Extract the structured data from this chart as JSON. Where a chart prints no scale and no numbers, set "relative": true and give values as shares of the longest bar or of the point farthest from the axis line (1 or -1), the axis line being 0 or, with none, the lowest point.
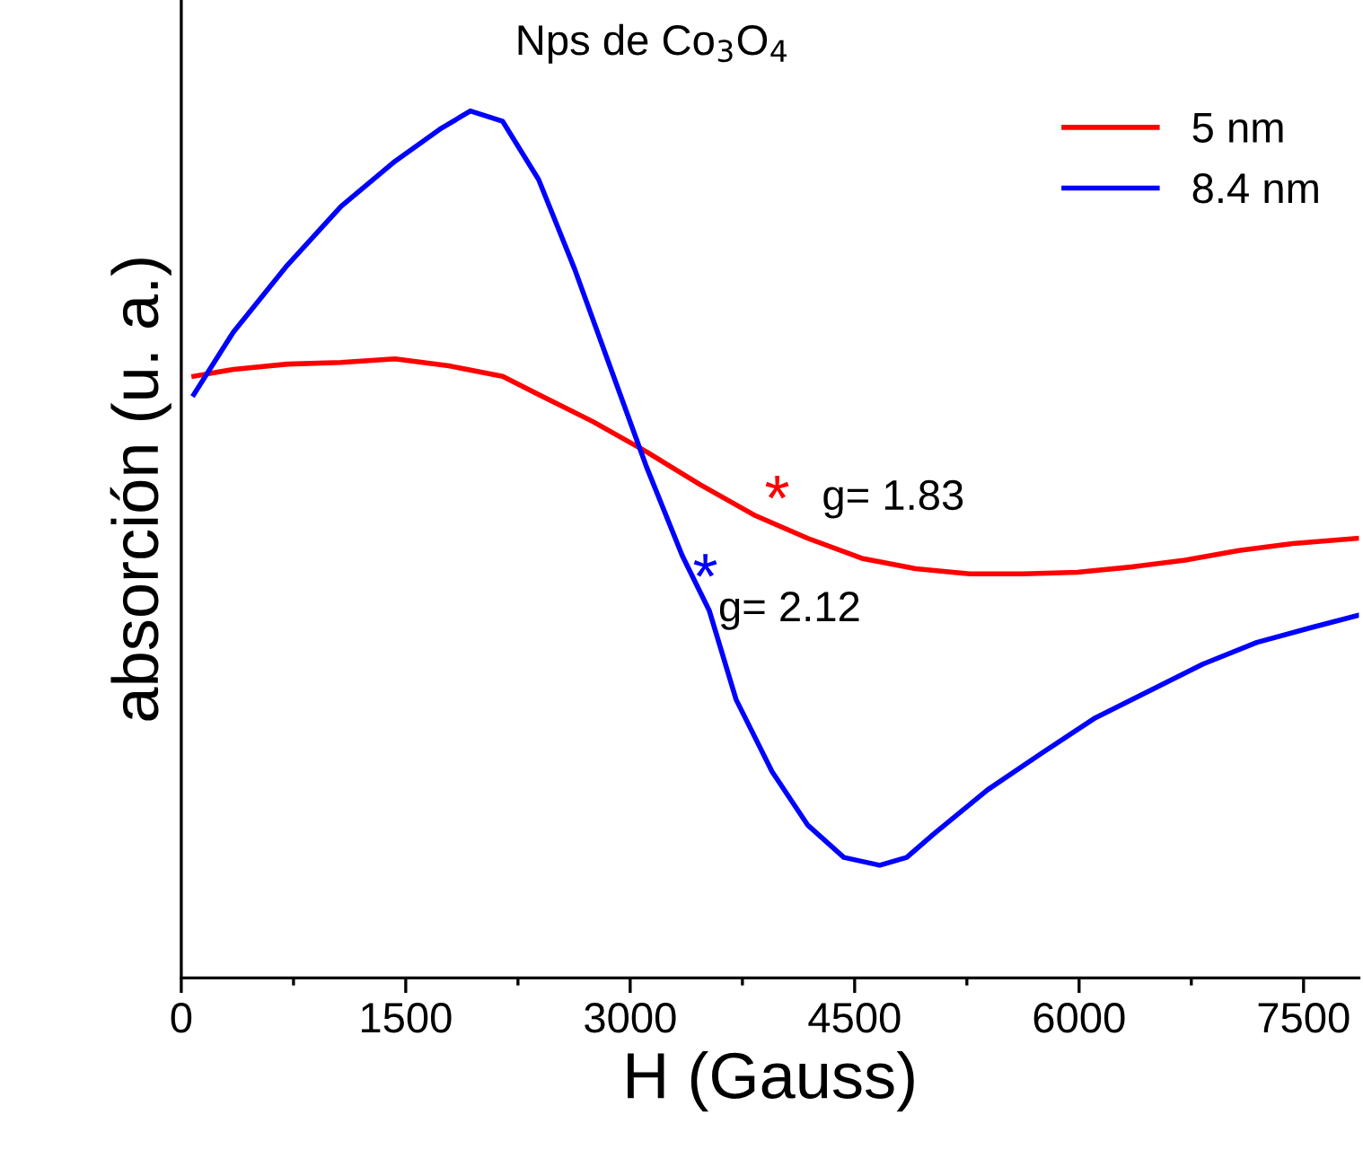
{
  "chart_data": {
    "type": "line",
    "title": "Nps de Co$_{3}$O$_{4}$",
    "xlabel": "H (Gauss)",
    "ylabel": "absorción (u. a.)",
    "relative": true,
    "xlim": [
      0,
      7870
    ],
    "xticks": [
      0,
      1500,
      3000,
      4500,
      6000,
      7500
    ],
    "legend": "top right",
    "grid": false,
    "series": [
      {
        "name": "5 nm",
        "color": "#ff0000",
        "x": [
          84,
          348,
          708,
          1068,
          1428,
          1788,
          2148,
          2388,
          2748,
          3108,
          3468,
          3828,
          4188,
          4548,
          4908,
          5268,
          5628,
          5988,
          6348,
          6708,
          7068,
          7428,
          7860
        ],
        "values": [
          0.694,
          0.702,
          0.708,
          0.71,
          0.714,
          0.706,
          0.694,
          0.673,
          0.642,
          0.607,
          0.569,
          0.534,
          0.507,
          0.484,
          0.472,
          0.466,
          0.466,
          0.468,
          0.474,
          0.482,
          0.493,
          0.501,
          0.507
        ]
      },
      {
        "name": "8.4 nm",
        "color": "#0000ff",
        "x": [
          84,
          348,
          708,
          1068,
          1428,
          1728,
          1932,
          2148,
          2388,
          2628,
          2868,
          3108,
          3348,
          3528,
          3708,
          3948,
          4188,
          4428,
          4668,
          4848,
          5028,
          5388,
          5748,
          6108,
          6468,
          6828,
          7188,
          7548,
          7860
        ],
        "values": [
          0.673,
          0.745,
          0.822,
          0.89,
          0.942,
          0.979,
          1.0,
          0.988,
          0.921,
          0.818,
          0.704,
          0.59,
          0.487,
          0.424,
          0.321,
          0.238,
          0.176,
          0.139,
          0.13,
          0.139,
          0.166,
          0.217,
          0.259,
          0.3,
          0.331,
          0.362,
          0.387,
          0.404,
          0.418
        ]
      }
    ],
    "annotations": [
      "*",
      "g= 1.83",
      "*",
      "g= 2.12"
    ]
  }
}
